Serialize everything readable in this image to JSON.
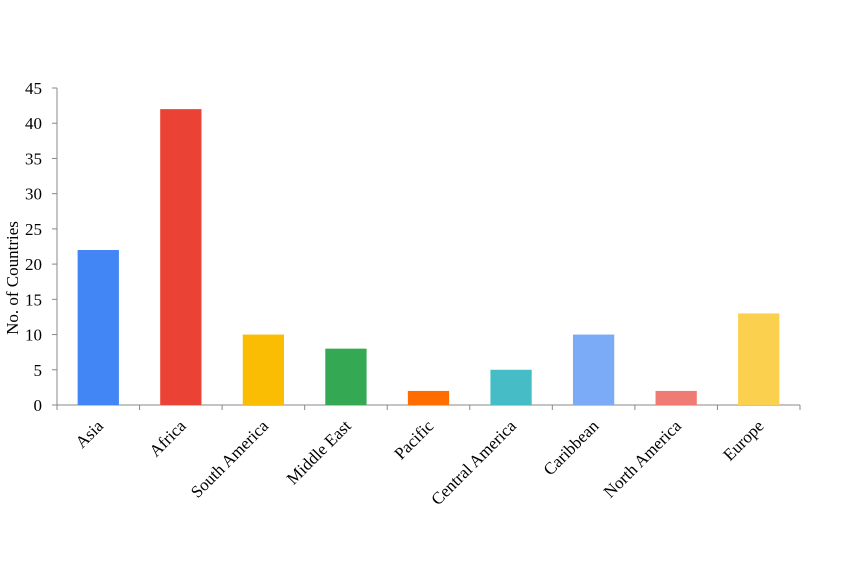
{
  "chart_data": {
    "type": "bar",
    "y_label": "No. of Countries",
    "categories": [
      "Asia",
      "Africa",
      "South America",
      "Middle East",
      "Pacific",
      "Central America",
      "Caribbean",
      "North America",
      "Europe"
    ],
    "values": [
      22,
      42,
      10,
      8,
      2,
      5,
      10,
      2,
      13
    ],
    "colors": [
      "#4285f4",
      "#ea4335",
      "#fbbc04",
      "#34a853",
      "#ff6d01",
      "#46bdc6",
      "#7baaf7",
      "#f07b72",
      "#fcd04f"
    ],
    "ylim": [
      0,
      45
    ],
    "yticks": [
      0,
      5,
      10,
      15,
      20,
      25,
      30,
      35,
      40,
      45
    ],
    "grid": false
  }
}
